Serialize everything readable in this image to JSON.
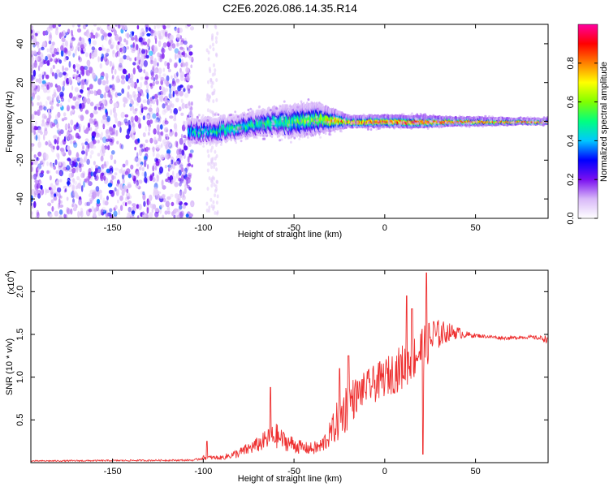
{
  "title": "C2E6.2026.086.14.35.R14",
  "colors": {
    "snr_line": "#ee3030",
    "spectrogram_base": "#7a10f0"
  },
  "chart_data": [
    {
      "type": "heatmap",
      "xlabel": "Height of straight line (km)",
      "ylabel": "Frequency (Hz)",
      "xlim": [
        -195,
        90
      ],
      "ylim": [
        -50,
        50
      ],
      "xticks": [
        -150,
        -100,
        -50,
        0,
        50
      ],
      "yticks": [
        -40,
        -20,
        0,
        20,
        40
      ],
      "xtick_labels": [
        "-150",
        "-100",
        "-50",
        "0",
        "50"
      ],
      "ytick_labels": [
        "-40",
        "-20",
        "0",
        "20",
        "40"
      ],
      "colorbar": {
        "label": "Normalized spectral amplitude",
        "range": [
          0,
          1
        ],
        "ticks": [
          0,
          0.2,
          0.4,
          0.6,
          0.8
        ],
        "tick_labels": [
          "0.0",
          "0.2",
          "0.4",
          "0.6",
          "0.8"
        ],
        "colormap": [
          "#ffffff",
          "#d8b8f8",
          "#7a10f0",
          "#0000ff",
          "#00c8ff",
          "#00ff80",
          "#80ff00",
          "#ffff00",
          "#ff8000",
          "#ff0000",
          "#ff00a0"
        ]
      },
      "noise_region_x": [
        -195,
        -108
      ],
      "ridge": {
        "x": [
          -108,
          -100,
          -90,
          -80,
          -70,
          -60,
          -50,
          -40,
          -30,
          -20,
          -10,
          0,
          10,
          20,
          30,
          40,
          50,
          60,
          70,
          80,
          90
        ],
        "freq": [
          -4,
          -5,
          -4,
          -3,
          -1,
          0,
          0,
          1,
          1,
          0,
          0,
          0,
          0,
          0,
          0,
          0,
          0,
          0,
          0,
          0,
          0
        ],
        "halfwidth": [
          6,
          6,
          6,
          6,
          6,
          7,
          8,
          8,
          6,
          3,
          3,
          3,
          3,
          3,
          2.5,
          2,
          2,
          1.8,
          1.6,
          1.5,
          1.5
        ],
        "peak_amplitude": [
          0.45,
          0.45,
          0.48,
          0.5,
          0.5,
          0.52,
          0.55,
          0.6,
          0.7,
          0.8,
          0.85,
          0.9,
          0.9,
          0.9,
          0.9,
          0.9,
          0.85,
          0.85,
          0.85,
          0.85,
          0.9
        ]
      }
    },
    {
      "type": "line",
      "xlabel": "Height of straight line (km)",
      "ylabel": "SNR (10 * v/v)",
      "y_multiplier": "(x10",
      "y_multiplier_exp": "4",
      "y_multiplier_close": ")",
      "xlim": [
        -195,
        90
      ],
      "ylim": [
        0,
        2.25
      ],
      "xticks": [
        -150,
        -100,
        -50,
        0,
        50
      ],
      "yticks": [
        0.5,
        1.0,
        1.5,
        2.0
      ],
      "xtick_labels": [
        "-150",
        "-100",
        "-50",
        "0",
        "50"
      ],
      "ytick_labels": [
        "0.5",
        "1.0",
        "1.5",
        "2.0"
      ],
      "series": [
        {
          "envelope_x": [
            -195,
            -105,
            -100,
            -90,
            -80,
            -70,
            -65,
            -60,
            -55,
            -50,
            -45,
            -40,
            -35,
            -30,
            -25,
            -20,
            -15,
            -10,
            -5,
            0,
            5,
            10,
            15,
            20,
            25,
            30,
            35,
            40,
            45,
            50,
            55,
            60,
            65,
            70,
            75,
            80,
            85,
            90
          ],
          "envelope_y": [
            0.02,
            0.03,
            0.06,
            0.06,
            0.12,
            0.22,
            0.28,
            0.33,
            0.26,
            0.22,
            0.18,
            0.17,
            0.2,
            0.35,
            0.55,
            0.72,
            0.82,
            0.9,
            0.95,
            1.02,
            1.08,
            1.15,
            1.25,
            1.35,
            1.45,
            1.52,
            1.54,
            1.53,
            1.5,
            1.49,
            1.48,
            1.47,
            1.46,
            1.46,
            1.47,
            1.47,
            1.46,
            1.45
          ],
          "noise_amplitude_y": [
            0.015,
            0.02,
            0.05,
            0.05,
            0.12,
            0.18,
            0.25,
            0.3,
            0.22,
            0.2,
            0.15,
            0.15,
            0.2,
            0.3,
            0.55,
            0.62,
            0.4,
            0.4,
            0.45,
            0.45,
            0.5,
            0.55,
            0.55,
            0.6,
            0.5,
            0.35,
            0.22,
            0.15,
            0.08,
            0.05,
            0.04,
            0.04,
            0.04,
            0.04,
            0.04,
            0.04,
            0.05,
            0.1
          ],
          "peaks": [
            {
              "x": -98,
              "y": 0.25
            },
            {
              "x": -63,
              "y": 0.88
            },
            {
              "x": -25,
              "y": 1.1
            },
            {
              "x": -20,
              "y": 1.25
            },
            {
              "x": 12,
              "y": 1.95
            },
            {
              "x": 15,
              "y": 1.8
            },
            {
              "x": 23,
              "y": 2.22
            },
            {
              "x": 21,
              "y": 0.1
            },
            {
              "x": 27,
              "y": 1.65
            }
          ]
        }
      ]
    }
  ]
}
